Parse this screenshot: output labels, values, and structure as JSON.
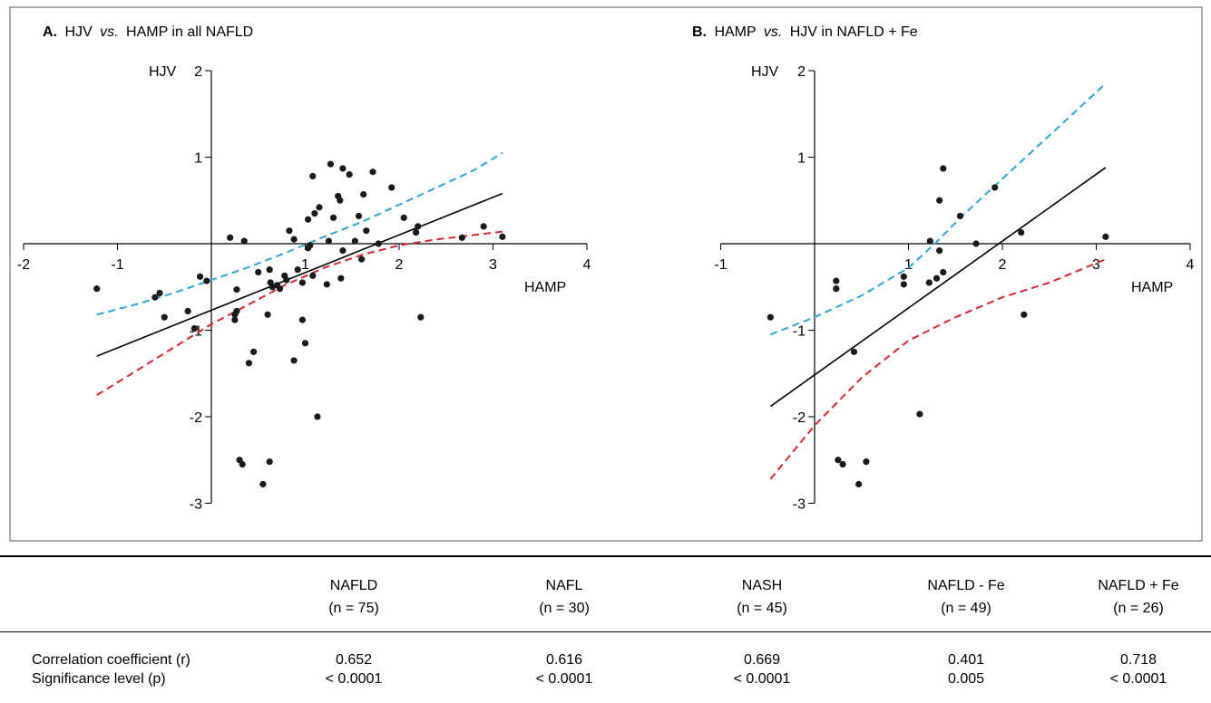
{
  "chart_data": [
    {
      "type": "scatter",
      "panel_letter": "A.",
      "title_parts": [
        "HJV",
        "vs.",
        "HAMP in all NAFLD"
      ],
      "ylabel": "HJV",
      "xlabel": "HAMP",
      "xlim": [
        -2,
        4
      ],
      "ylim": [
        -3,
        2
      ],
      "xticks": [
        "-2",
        "-1",
        "1",
        "2",
        "3",
        "4"
      ],
      "yticks": [
        "2",
        "1",
        "-1",
        "-2",
        "-3"
      ],
      "points": [
        [
          -1.22,
          -0.52
        ],
        [
          -0.6,
          -0.62
        ],
        [
          -0.55,
          -0.57
        ],
        [
          -0.5,
          -0.85
        ],
        [
          -0.25,
          -0.78
        ],
        [
          -0.18,
          -0.98
        ],
        [
          -0.12,
          -0.38
        ],
        [
          -0.05,
          -0.43
        ],
        [
          0.2,
          0.07
        ],
        [
          0.25,
          -0.82
        ],
        [
          0.25,
          -0.88
        ],
        [
          0.27,
          -0.78
        ],
        [
          0.27,
          -0.53
        ],
        [
          0.3,
          -2.5
        ],
        [
          0.33,
          -2.55
        ],
        [
          0.35,
          0.03
        ],
        [
          0.4,
          -1.38
        ],
        [
          0.45,
          -1.25
        ],
        [
          0.5,
          -0.33
        ],
        [
          0.55,
          -2.78
        ],
        [
          0.6,
          -0.82
        ],
        [
          0.62,
          -2.52
        ],
        [
          0.62,
          -0.3
        ],
        [
          0.63,
          -0.45
        ],
        [
          0.65,
          -0.5
        ],
        [
          0.7,
          -0.48
        ],
        [
          0.73,
          -0.52
        ],
        [
          0.78,
          -0.37
        ],
        [
          0.8,
          -0.42
        ],
        [
          0.83,
          0.15
        ],
        [
          0.88,
          0.05
        ],
        [
          0.88,
          -1.35
        ],
        [
          0.92,
          -0.3
        ],
        [
          0.97,
          -0.88
        ],
        [
          0.97,
          -0.45
        ],
        [
          1.0,
          -1.15
        ],
        [
          1.03,
          -0.05
        ],
        [
          1.03,
          0.28
        ],
        [
          1.05,
          -0.02
        ],
        [
          1.08,
          0.78
        ],
        [
          1.08,
          -0.37
        ],
        [
          1.1,
          0.35
        ],
        [
          1.13,
          -2.0
        ],
        [
          1.15,
          0.42
        ],
        [
          1.23,
          -0.47
        ],
        [
          1.25,
          0.03
        ],
        [
          1.27,
          0.92
        ],
        [
          1.3,
          0.3
        ],
        [
          1.35,
          0.55
        ],
        [
          1.37,
          0.5
        ],
        [
          1.38,
          -0.4
        ],
        [
          1.4,
          0.87
        ],
        [
          1.4,
          -0.08
        ],
        [
          1.47,
          0.8
        ],
        [
          1.53,
          0.03
        ],
        [
          1.57,
          0.32
        ],
        [
          1.6,
          -0.18
        ],
        [
          1.62,
          0.57
        ],
        [
          1.65,
          0.15
        ],
        [
          1.72,
          0.83
        ],
        [
          1.78,
          0.0
        ],
        [
          1.92,
          0.65
        ],
        [
          2.05,
          0.3
        ],
        [
          2.18,
          0.13
        ],
        [
          2.2,
          0.2
        ],
        [
          2.23,
          -0.85
        ],
        [
          2.67,
          0.07
        ],
        [
          2.9,
          0.2
        ],
        [
          3.1,
          0.08
        ]
      ],
      "fit_line": [
        [
          -1.22,
          -1.3
        ],
        [
          3.1,
          0.58
        ]
      ],
      "ci_upper": [
        [
          -1.22,
          -0.82
        ],
        [
          -0.8,
          -0.7
        ],
        [
          -0.4,
          -0.57
        ],
        [
          0.0,
          -0.42
        ],
        [
          0.4,
          -0.27
        ],
        [
          0.8,
          -0.1
        ],
        [
          1.2,
          0.08
        ],
        [
          1.6,
          0.25
        ],
        [
          2.0,
          0.45
        ],
        [
          2.4,
          0.65
        ],
        [
          2.8,
          0.85
        ],
        [
          3.1,
          1.05
        ]
      ],
      "ci_lower": [
        [
          -1.22,
          -1.75
        ],
        [
          -0.8,
          -1.47
        ],
        [
          -0.4,
          -1.2
        ],
        [
          0.0,
          -0.93
        ],
        [
          0.4,
          -0.7
        ],
        [
          0.8,
          -0.47
        ],
        [
          1.2,
          -0.28
        ],
        [
          1.6,
          -0.13
        ],
        [
          2.0,
          -0.02
        ],
        [
          2.4,
          0.05
        ],
        [
          2.8,
          0.1
        ],
        [
          3.1,
          0.14
        ]
      ]
    },
    {
      "type": "scatter",
      "panel_letter": "B.",
      "title_parts": [
        "HAMP",
        "vs.",
        "HJV in NAFLD + Fe"
      ],
      "ylabel": "HJV",
      "xlabel": "HAMP",
      "xlim": [
        -1,
        4
      ],
      "ylim": [
        -3,
        2
      ],
      "xticks": [
        "-1",
        "1",
        "2",
        "3",
        "4"
      ],
      "yticks": [
        "2",
        "1",
        "-1",
        "-2",
        "-3"
      ],
      "points": [
        [
          -0.47,
          -0.85
        ],
        [
          0.23,
          -0.43
        ],
        [
          0.23,
          -0.52
        ],
        [
          0.25,
          -2.5
        ],
        [
          0.3,
          -2.55
        ],
        [
          0.42,
          -1.25
        ],
        [
          0.47,
          -2.78
        ],
        [
          0.55,
          -2.52
        ],
        [
          0.95,
          -0.38
        ],
        [
          0.95,
          -0.47
        ],
        [
          1.12,
          -1.97
        ],
        [
          1.22,
          -0.45
        ],
        [
          1.23,
          0.03
        ],
        [
          1.3,
          -0.4
        ],
        [
          1.33,
          0.5
        ],
        [
          1.33,
          -0.08
        ],
        [
          1.37,
          0.87
        ],
        [
          1.37,
          -0.33
        ],
        [
          1.55,
          0.32
        ],
        [
          1.72,
          0.0
        ],
        [
          1.92,
          0.65
        ],
        [
          2.2,
          0.13
        ],
        [
          2.23,
          -0.82
        ],
        [
          3.1,
          0.08
        ]
      ],
      "fit_line": [
        [
          -0.47,
          -1.88
        ],
        [
          3.1,
          0.88
        ]
      ],
      "ci_upper": [
        [
          -0.47,
          -1.05
        ],
        [
          0.0,
          -0.85
        ],
        [
          0.5,
          -0.6
        ],
        [
          1.0,
          -0.28
        ],
        [
          1.3,
          0.02
        ],
        [
          1.6,
          0.35
        ],
        [
          2.0,
          0.75
        ],
        [
          2.5,
          1.25
        ],
        [
          3.1,
          1.85
        ]
      ],
      "ci_lower": [
        [
          -0.47,
          -2.72
        ],
        [
          0.0,
          -2.1
        ],
        [
          0.5,
          -1.55
        ],
        [
          1.0,
          -1.12
        ],
        [
          1.5,
          -0.85
        ],
        [
          2.0,
          -0.62
        ],
        [
          2.5,
          -0.45
        ],
        [
          3.1,
          -0.18
        ]
      ]
    }
  ],
  "table": {
    "columns": [
      {
        "name": "NAFLD",
        "n": "(n = 75)"
      },
      {
        "name": "NAFL",
        "n": "(n = 30)"
      },
      {
        "name": "NASH",
        "n": "(n = 45)"
      },
      {
        "name": "NAFLD - Fe",
        "n": "(n = 49)"
      },
      {
        "name": "NAFLD + Fe",
        "n": "(n = 26)"
      }
    ],
    "rows": [
      {
        "label": "Correlation coefficient (r)",
        "values": [
          "0.652",
          "0.616",
          "0.669",
          "0.401",
          "0.718"
        ]
      },
      {
        "label": "Significance level (p)",
        "values": [
          "< 0.0001",
          "< 0.0001",
          "< 0.0001",
          "0.005",
          "< 0.0001"
        ]
      }
    ]
  },
  "colors": {
    "points": "#1a1a1a",
    "fit_line": "#000000",
    "ci_upper": "#2aa6d9",
    "ci_lower": "#d9272e",
    "frame": "#555555"
  }
}
